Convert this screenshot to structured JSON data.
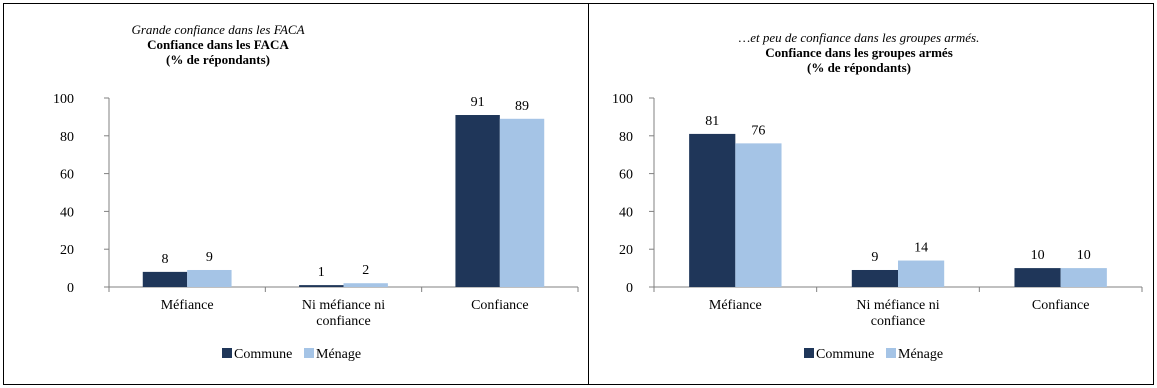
{
  "chart_data": [
    {
      "type": "bar",
      "title_italic": "Grande confiance dans les FACA",
      "title": "Confiance dans les FACA",
      "subtitle": "(% de répondants)",
      "categories": [
        "Méfiance",
        "Ni méfiance ni confiance",
        "Confiance"
      ],
      "category_lines": [
        [
          "Méfiance"
        ],
        [
          "Ni méfiance ni",
          "confiance"
        ],
        [
          "Confiance"
        ]
      ],
      "series": [
        {
          "name": "Commune",
          "color": "#1f3659",
          "values": [
            8,
            1,
            91
          ]
        },
        {
          "name": "Ménage",
          "color": "#a5c4e6",
          "values": [
            9,
            2,
            89
          ]
        }
      ],
      "ylim": [
        0,
        100
      ],
      "yticks": [
        "0",
        "20",
        "40",
        "60",
        "80",
        "100"
      ],
      "legend_position": "bottom",
      "grid": false
    },
    {
      "type": "bar",
      "title_italic": "…et peu de confiance dans les groupes armés.",
      "title": "Confiance dans les groupes armés",
      "subtitle": "(% de répondants)",
      "categories": [
        "Méfiance",
        "Ni méfiance ni confiance",
        "Confiance"
      ],
      "category_lines": [
        [
          "Méfiance"
        ],
        [
          "Ni méfiance ni",
          "confiance"
        ],
        [
          "Confiance"
        ]
      ],
      "series": [
        {
          "name": "Commune",
          "color": "#1f3659",
          "values": [
            81,
            9,
            10
          ]
        },
        {
          "name": "Ménage",
          "color": "#a5c4e6",
          "values": [
            76,
            14,
            10
          ]
        }
      ],
      "ylim": [
        0,
        100
      ],
      "yticks": [
        "0",
        "20",
        "40",
        "60",
        "80",
        "100"
      ],
      "legend_position": "bottom",
      "grid": false
    }
  ]
}
